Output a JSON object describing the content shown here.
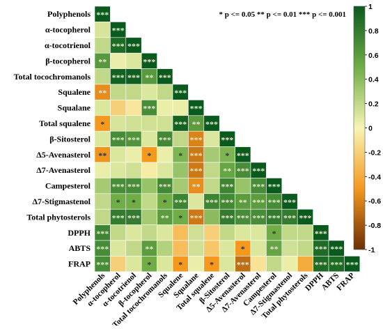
{
  "chart_data": {
    "type": "heatmap",
    "layout": "lower-triangle correlation matrix",
    "variables": [
      "Polyphenols",
      "α-tocopherol",
      "α-tocotrienol",
      "β-tocopherol",
      "Total tocochromanols",
      "Squalene",
      "Squalane",
      "Total squalene",
      "β-Sitosterol",
      "Δ5-Avenasterol",
      "Δ7-Avenasterol",
      "Campesterol",
      "Δ7-Stigmastenol",
      "Total phytosterols",
      "DPPH",
      "ABTS",
      "FRAP"
    ],
    "values": [
      [
        1
      ],
      [
        0.12,
        1
      ],
      [
        0.2,
        0.9,
        1
      ],
      [
        0.62,
        0.05,
        0.1,
        1
      ],
      [
        0.2,
        0.95,
        0.97,
        0.62,
        1
      ],
      [
        -0.55,
        0.2,
        0.2,
        0.1,
        0.2,
        1
      ],
      [
        0.1,
        -0.2,
        -0.08,
        0.7,
        0.05,
        0.05,
        1
      ],
      [
        -0.5,
        0.12,
        0.15,
        0.15,
        0.15,
        0.95,
        0.6,
        1
      ],
      [
        0.1,
        0.7,
        0.65,
        0.1,
        0.72,
        0.2,
        -0.6,
        0.1,
        1
      ],
      [
        -0.52,
        0.1,
        0.05,
        -0.5,
        0.05,
        0.45,
        -0.65,
        0.3,
        0.45,
        1
      ],
      [
        0.05,
        0.1,
        0.15,
        -0.05,
        0.1,
        0.35,
        -0.65,
        0.2,
        0.55,
        0.7,
        1
      ],
      [
        0.3,
        0.7,
        0.7,
        0.35,
        0.72,
        0.3,
        -0.55,
        0.2,
        0.75,
        0.35,
        0.7,
        1
      ],
      [
        0.2,
        0.5,
        0.5,
        0.2,
        0.5,
        0.75,
        0.1,
        0.75,
        0.72,
        0.6,
        0.6,
        0.7,
        1
      ],
      [
        0.2,
        0.8,
        0.8,
        0.3,
        0.6,
        0.5,
        -0.65,
        0.4,
        0.8,
        0.7,
        0.7,
        0.8,
        0.8,
        1
      ],
      [
        0.75,
        0.2,
        0.1,
        0.2,
        0.1,
        -0.3,
        0.15,
        -0.2,
        0.2,
        0.1,
        0.1,
        0.5,
        0.2,
        0.2,
        1
      ],
      [
        0.7,
        0.1,
        0.2,
        0.6,
        0.25,
        -0.3,
        0.15,
        -0.25,
        0.1,
        -0.5,
        0.1,
        0.55,
        0.15,
        0.2,
        0.9,
        1
      ],
      [
        0.7,
        -0.2,
        0.1,
        0.5,
        0.1,
        -0.5,
        0.05,
        -0.5,
        0.1,
        -0.7,
        -0.1,
        0.2,
        0.05,
        -0.4,
        0.9,
        0.9,
        1
      ]
    ],
    "significance": [
      [
        "***"
      ],
      [
        "",
        "***"
      ],
      [
        "",
        "***",
        "***"
      ],
      [
        "**",
        "",
        "",
        "***"
      ],
      [
        "",
        "***",
        "***",
        "**",
        "***"
      ],
      [
        "**",
        "",
        "",
        "",
        "",
        "***"
      ],
      [
        "",
        "",
        "",
        "***",
        "",
        "",
        "***"
      ],
      [
        "*",
        "",
        "",
        "",
        "",
        "***",
        "**",
        "***"
      ],
      [
        "",
        "***",
        "***",
        "",
        "***",
        "",
        "***",
        "",
        "***"
      ],
      [
        "**",
        "",
        "",
        "*",
        "",
        "*",
        "***",
        "",
        "*",
        "***"
      ],
      [
        "",
        "",
        "",
        "",
        "",
        "",
        "***",
        "",
        "**",
        "***",
        "***"
      ],
      [
        "",
        "***",
        "***",
        "",
        "***",
        "",
        "**",
        "",
        "***",
        "",
        "***",
        "***"
      ],
      [
        "",
        "*",
        "*",
        "",
        "*",
        "***",
        "",
        "***",
        "***",
        "**",
        "***",
        "***",
        "***"
      ],
      [
        "",
        "***",
        "***",
        "",
        "**",
        "*",
        "***",
        "",
        "***",
        "***",
        "***",
        "***",
        "***",
        "***"
      ],
      [
        "***",
        "",
        "",
        "",
        "",
        "",
        "",
        "",
        "",
        "",
        "",
        "*",
        "",
        "",
        "***"
      ],
      [
        "***",
        "",
        "",
        "**",
        "",
        "",
        "",
        "",
        "",
        "*",
        "",
        "**",
        "",
        "",
        "***",
        "***"
      ],
      [
        "***",
        "",
        "",
        "*",
        "",
        "*",
        "",
        "*",
        "",
        "***",
        "",
        "",
        "",
        "",
        "***",
        "***",
        "***"
      ]
    ],
    "significance_legend": "* p <= 0.05  ** p <= 0.01  *** p <= 0.001",
    "colorbar": {
      "min": -1,
      "max": 1,
      "ticks": [
        "1",
        "0.8",
        "0.6",
        "0.4",
        "0.2",
        "0",
        "-0.2",
        "-0.4",
        "-0.6",
        "-0.8",
        "-1"
      ],
      "colors": {
        "positive": "#0a5a1e",
        "zero": "#f7f5b4",
        "negative": "#6b2e05"
      }
    },
    "title": "",
    "xlabel": "",
    "ylabel": ""
  }
}
